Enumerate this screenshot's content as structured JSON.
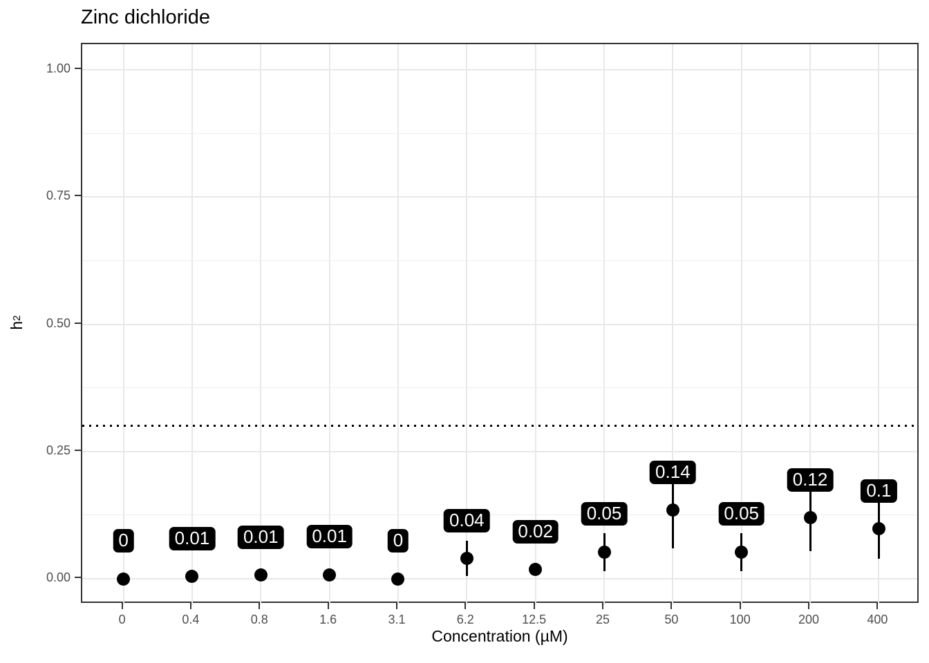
{
  "title": "Zinc dichloride",
  "x_axis": {
    "title": "Concentration (µM)"
  },
  "y_axis": {
    "title_base": "h",
    "title_sup": "2"
  },
  "colors": {
    "point": "#000000",
    "error_bar": "#000000",
    "label_bg": "#000000",
    "label_text": "#ffffff",
    "grid_major": "#e8e8e8",
    "grid_minor": "#ededed",
    "axis_tick_text": "#4d4d4d",
    "panel_border": "#333333",
    "reference_line": "#000000"
  },
  "chart_data": {
    "type": "scatter",
    "title": "Zinc dichloride",
    "xlabel": "Concentration (µM)",
    "ylabel": "h²",
    "categories": [
      "0",
      "0.4",
      "0.8",
      "1.6",
      "3.1",
      "6.2",
      "12.5",
      "25",
      "50",
      "100",
      "200",
      "400"
    ],
    "points": [
      {
        "x": "0",
        "y": 0.0,
        "label": "0",
        "err": null
      },
      {
        "x": "0.4",
        "y": 0.005,
        "label": "0.01",
        "err": null
      },
      {
        "x": "0.8",
        "y": 0.007,
        "label": "0.01",
        "err": null
      },
      {
        "x": "1.6",
        "y": 0.008,
        "label": "0.01",
        "err": null
      },
      {
        "x": "3.1",
        "y": 0.0,
        "label": "0",
        "err": null
      },
      {
        "x": "6.2",
        "y": 0.04,
        "label": "0.04",
        "err": [
          0.005,
          0.075
        ]
      },
      {
        "x": "12.5",
        "y": 0.018,
        "label": "0.02",
        "err": null
      },
      {
        "x": "25",
        "y": 0.053,
        "label": "0.05",
        "err": [
          0.015,
          0.09
        ]
      },
      {
        "x": "50",
        "y": 0.135,
        "label": "0.14",
        "err": [
          0.06,
          0.2
        ]
      },
      {
        "x": "100",
        "y": 0.053,
        "label": "0.05",
        "err": [
          0.015,
          0.09
        ]
      },
      {
        "x": "200",
        "y": 0.12,
        "label": "0.12",
        "err": [
          0.054,
          0.186
        ]
      },
      {
        "x": "400",
        "y": 0.098,
        "label": "0.1",
        "err": [
          0.039,
          0.16
        ]
      }
    ],
    "y_ticks": [
      {
        "label": "0.00",
        "value": 0.0
      },
      {
        "label": "0.25",
        "value": 0.25
      },
      {
        "label": "0.50",
        "value": 0.5
      },
      {
        "label": "0.75",
        "value": 0.75
      },
      {
        "label": "1.00",
        "value": 1.0
      }
    ],
    "y_minor_breaks": [
      0.125,
      0.375,
      0.625,
      0.875
    ],
    "ylim": [
      -0.05,
      1.05
    ],
    "reference_line": {
      "y": 0.3,
      "style": "dotted"
    },
    "grid": true,
    "legend": "none",
    "label_offset_y": 0.05
  }
}
